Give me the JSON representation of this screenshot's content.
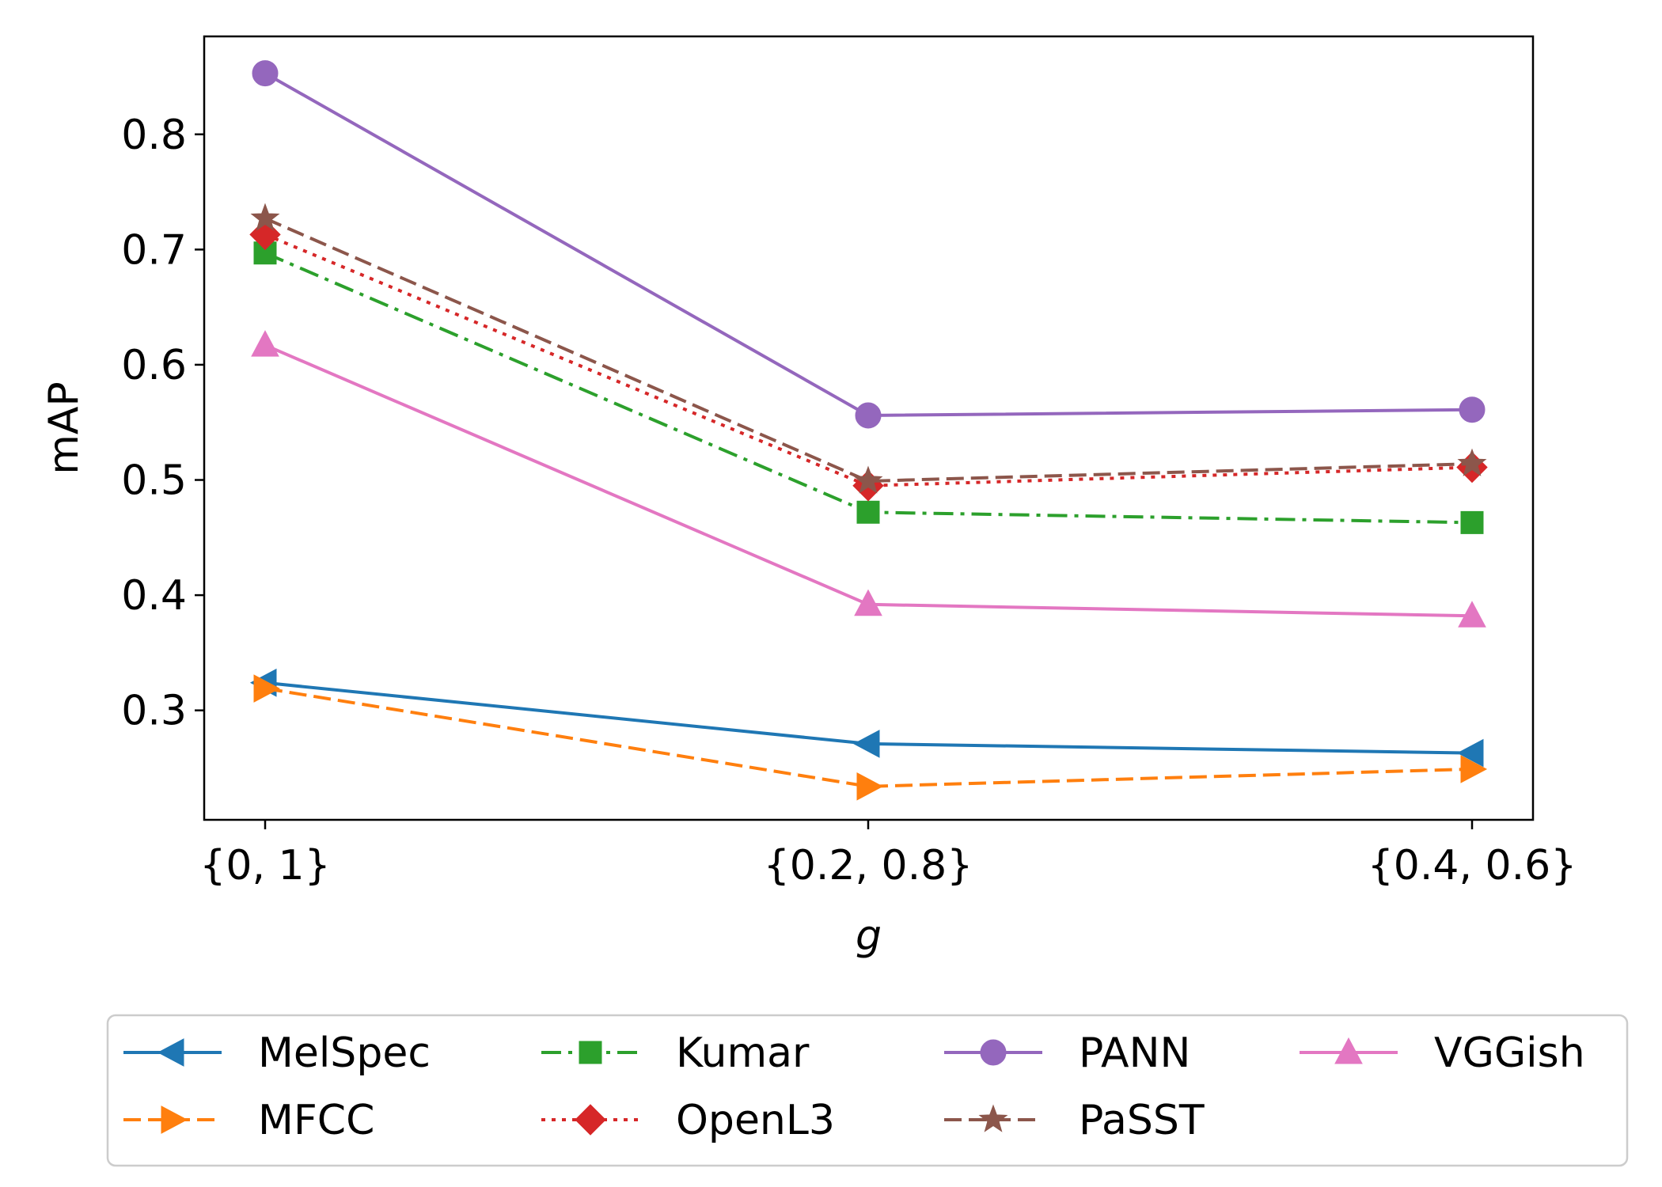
{
  "chart_data": {
    "type": "line",
    "xlabel": "g",
    "ylabel": "mAP",
    "categories": [
      "{0, 1}",
      "{0.2, 0.8}",
      "{0.4, 0.6}"
    ],
    "ylim": [
      0.205,
      0.885
    ],
    "yticks": [
      0.3,
      0.4,
      0.5,
      0.6,
      0.7,
      0.8
    ],
    "ytick_labels": [
      "0.3",
      "0.4",
      "0.5",
      "0.6",
      "0.7",
      "0.8"
    ],
    "grid": false,
    "legend_position": "bottom-outside",
    "series": [
      {
        "name": "MelSpec",
        "values": [
          0.324,
          0.271,
          0.263
        ],
        "color": "#1f77b4",
        "dash": "solid",
        "marker": "triangle-left"
      },
      {
        "name": "MFCC",
        "values": [
          0.319,
          0.234,
          0.249
        ],
        "color": "#ff7f0e",
        "dash": "dashed",
        "marker": "triangle-right"
      },
      {
        "name": "Kumar",
        "values": [
          0.697,
          0.472,
          0.463
        ],
        "color": "#2ca02c",
        "dash": "dashdot",
        "marker": "square"
      },
      {
        "name": "OpenL3",
        "values": [
          0.713,
          0.495,
          0.511
        ],
        "color": "#d62728",
        "dash": "dotted",
        "marker": "diamond"
      },
      {
        "name": "PANN",
        "values": [
          0.853,
          0.556,
          0.561
        ],
        "color": "#9467bd",
        "dash": "solid",
        "marker": "circle"
      },
      {
        "name": "PaSST",
        "values": [
          0.727,
          0.499,
          0.514
        ],
        "color": "#8c564b",
        "dash": "dashed",
        "marker": "star"
      },
      {
        "name": "VGGish",
        "values": [
          0.617,
          0.392,
          0.382
        ],
        "color": "#e377c2",
        "dash": "solid",
        "marker": "triangle-up"
      }
    ]
  }
}
